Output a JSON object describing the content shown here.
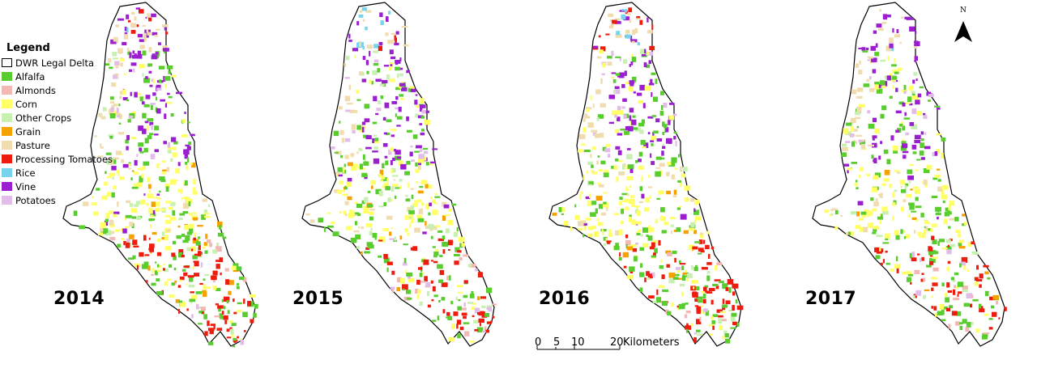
{
  "legend": {
    "title": "Legend",
    "items": [
      {
        "label": "DWR Legal Delta",
        "color": "#ffffff",
        "outline": true
      },
      {
        "label": "Alfalfa",
        "color": "#59cc2e"
      },
      {
        "label": "Almonds",
        "color": "#f3b8b3"
      },
      {
        "label": "Corn",
        "color": "#ffff66"
      },
      {
        "label": "Other Crops",
        "color": "#c8f0b0"
      },
      {
        "label": "Grain",
        "color": "#f5a100"
      },
      {
        "label": "Pasture",
        "color": "#f0dcae"
      },
      {
        "label": "Processing Tomatoes",
        "color": "#ee1c0e"
      },
      {
        "label": "Rice",
        "color": "#78d3ef"
      },
      {
        "label": "Vine",
        "color": "#9b1fd0"
      },
      {
        "label": "Potatoes",
        "color": "#e2bde9"
      }
    ]
  },
  "maps": [
    {
      "year": "2014",
      "density": 1.0,
      "rice_north": 0.2,
      "tomato_north": 0.6,
      "vine": 0.9
    },
    {
      "year": "2015",
      "density": 0.9,
      "rice_north": 1.0,
      "tomato_north": 0.7,
      "vine": 0.9
    },
    {
      "year": "2016",
      "density": 0.9,
      "rice_north": 0.9,
      "tomato_north": 1.0,
      "vine": 1.0
    },
    {
      "year": "2017",
      "density": 0.8,
      "rice_north": 0.4,
      "tomato_north": 0.3,
      "vine": 0.85
    }
  ],
  "scale_bar": {
    "ticks": [
      "0",
      "5",
      "10",
      "20"
    ],
    "unit": "Kilometers"
  },
  "north_arrow": {
    "label": "N"
  }
}
